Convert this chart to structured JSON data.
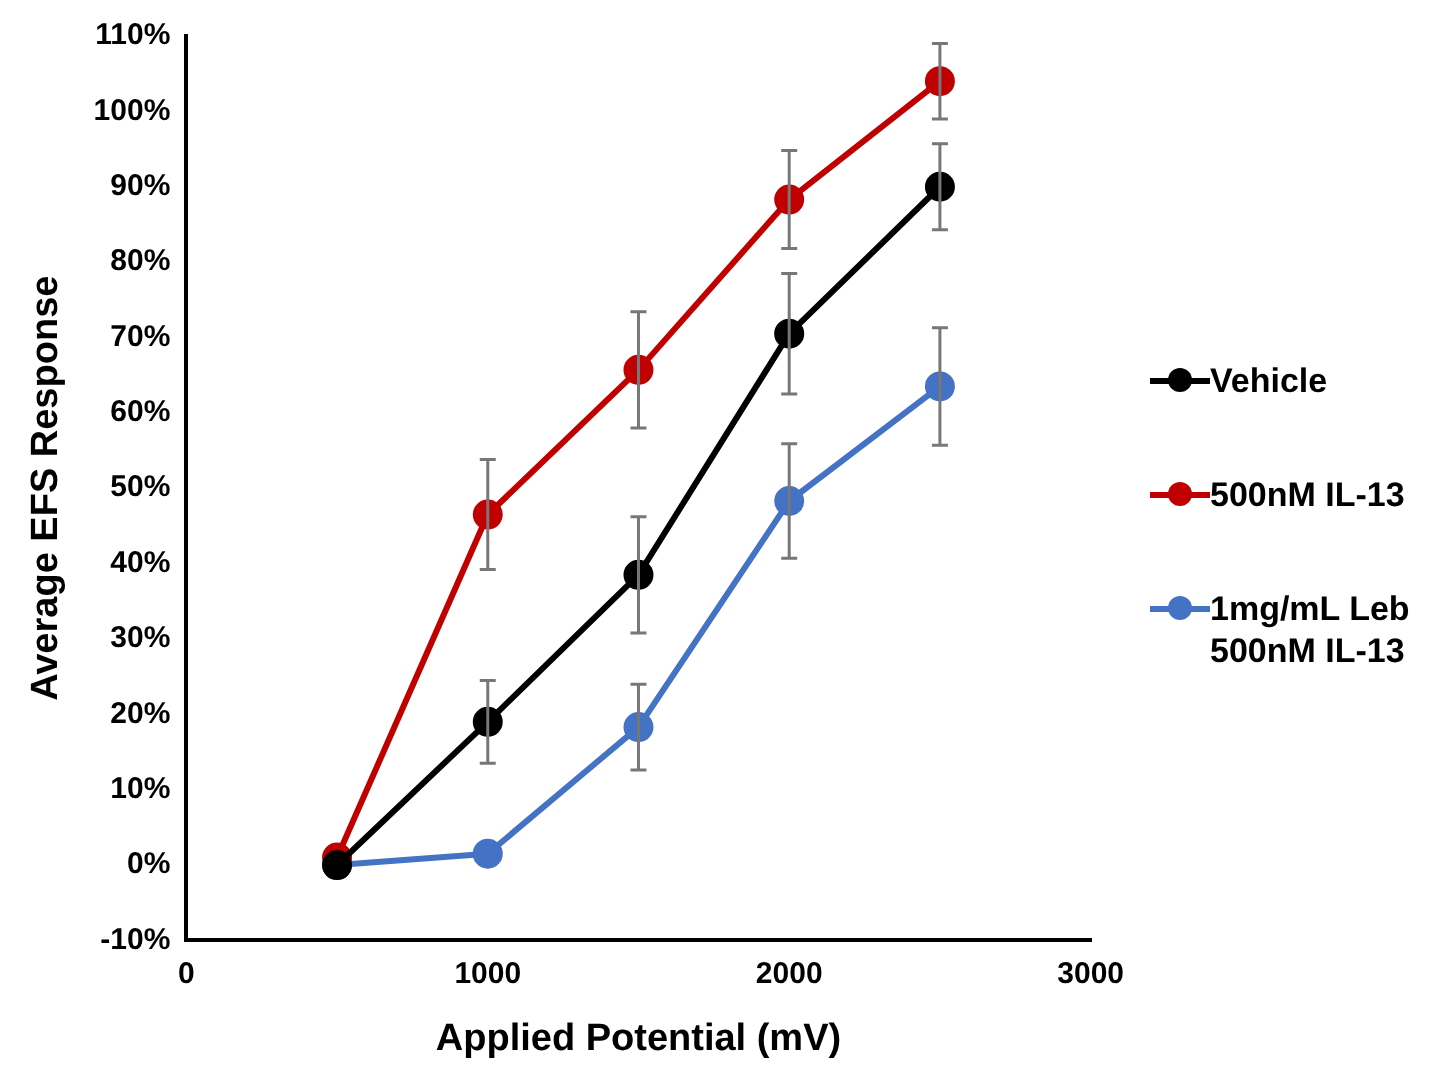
{
  "chart_data": {
    "type": "line",
    "xlabel": "Applied Potential (mV)",
    "ylabel": "Average EFS Response",
    "x": [
      500,
      1000,
      1500,
      2000,
      2500
    ],
    "series": [
      {
        "name": "Vehicle",
        "color": "#000000",
        "values": [
          0,
          19,
          38.5,
          70.5,
          90
        ],
        "errors": [
          null,
          5.5,
          7.7,
          8,
          5.7
        ]
      },
      {
        "name": "500nM IL-13",
        "color": "#c00000",
        "values": [
          1,
          46.5,
          65.7,
          88.3,
          104
        ],
        "errors": [
          null,
          7.3,
          7.7,
          6.5,
          5
        ]
      },
      {
        "name": "1mg/mL Leb 500nM IL-13",
        "color": "#4472c4",
        "values": [
          0,
          1.5,
          18.3,
          48.3,
          63.5
        ],
        "errors": [
          null,
          null,
          5.7,
          7.6,
          7.8
        ]
      }
    ],
    "xlim": [
      0,
      3000
    ],
    "xticks": [
      0,
      1000,
      2000,
      3000
    ],
    "ylim": [
      -10,
      110
    ],
    "yticks": [
      {
        "value": -10,
        "label": "-10%"
      },
      {
        "value": 0,
        "label": "0%"
      },
      {
        "value": 10,
        "label": "10%"
      },
      {
        "value": 20,
        "label": "20%"
      },
      {
        "value": 30,
        "label": "30%"
      },
      {
        "value": 40,
        "label": "40%"
      },
      {
        "value": 50,
        "label": "50%"
      },
      {
        "value": 60,
        "label": "60%"
      },
      {
        "value": 70,
        "label": "70%"
      },
      {
        "value": 80,
        "label": "80%"
      },
      {
        "value": 90,
        "label": "90%"
      },
      {
        "value": 100,
        "label": "100%"
      },
      {
        "value": 110,
        "label": "110%"
      }
    ],
    "grid": false,
    "legend": "right",
    "marker": "circle",
    "line_style": "solid"
  }
}
